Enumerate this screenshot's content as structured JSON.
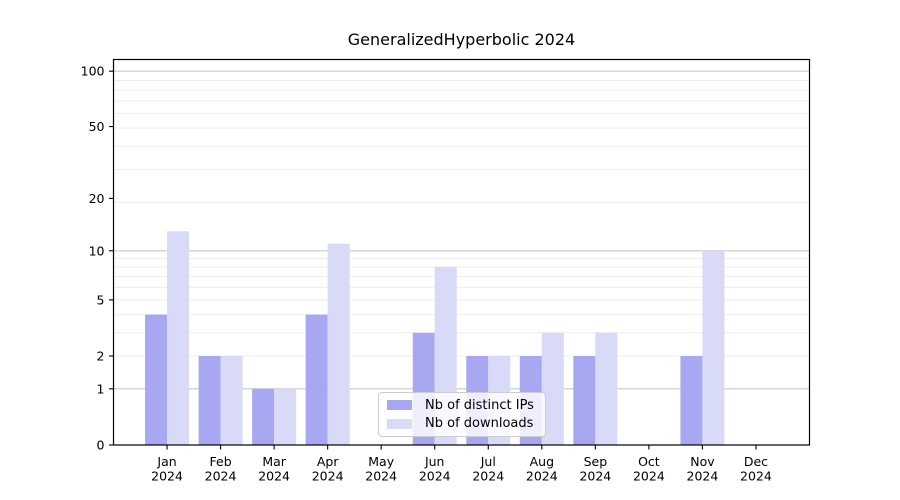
{
  "chart_data": {
    "type": "bar",
    "title": "GeneralizedHyperbolic 2024",
    "year": "2024",
    "categories": [
      "Jan",
      "Feb",
      "Mar",
      "Apr",
      "May",
      "Jun",
      "Jul",
      "Aug",
      "Sep",
      "Oct",
      "Nov",
      "Dec"
    ],
    "series": [
      {
        "name": "Nb of distinct IPs",
        "color": "#a8a8f2",
        "values": [
          4,
          2,
          1,
          4,
          0,
          3,
          2,
          2,
          2,
          0,
          2,
          0
        ]
      },
      {
        "name": "Nb of downloads",
        "color": "#d9d9f8",
        "values": [
          13,
          2,
          1,
          11,
          0,
          8,
          2,
          3,
          3,
          0,
          10,
          0
        ]
      }
    ],
    "xlabel": "",
    "ylabel": "",
    "yscale": "log1p",
    "yticks": [
      0,
      1,
      2,
      5,
      10,
      20,
      50,
      100
    ],
    "major_gridline_values": [
      1,
      10,
      100
    ],
    "ylim": [
      0,
      115
    ],
    "grid": true,
    "legend_position": "inside-bottom-center"
  },
  "colors": {
    "major_grid": "#c9c9c9",
    "minor_grid": "#ededed",
    "axis": "#000000",
    "tick_label": "#000000",
    "legend_border": "#cccccc"
  }
}
